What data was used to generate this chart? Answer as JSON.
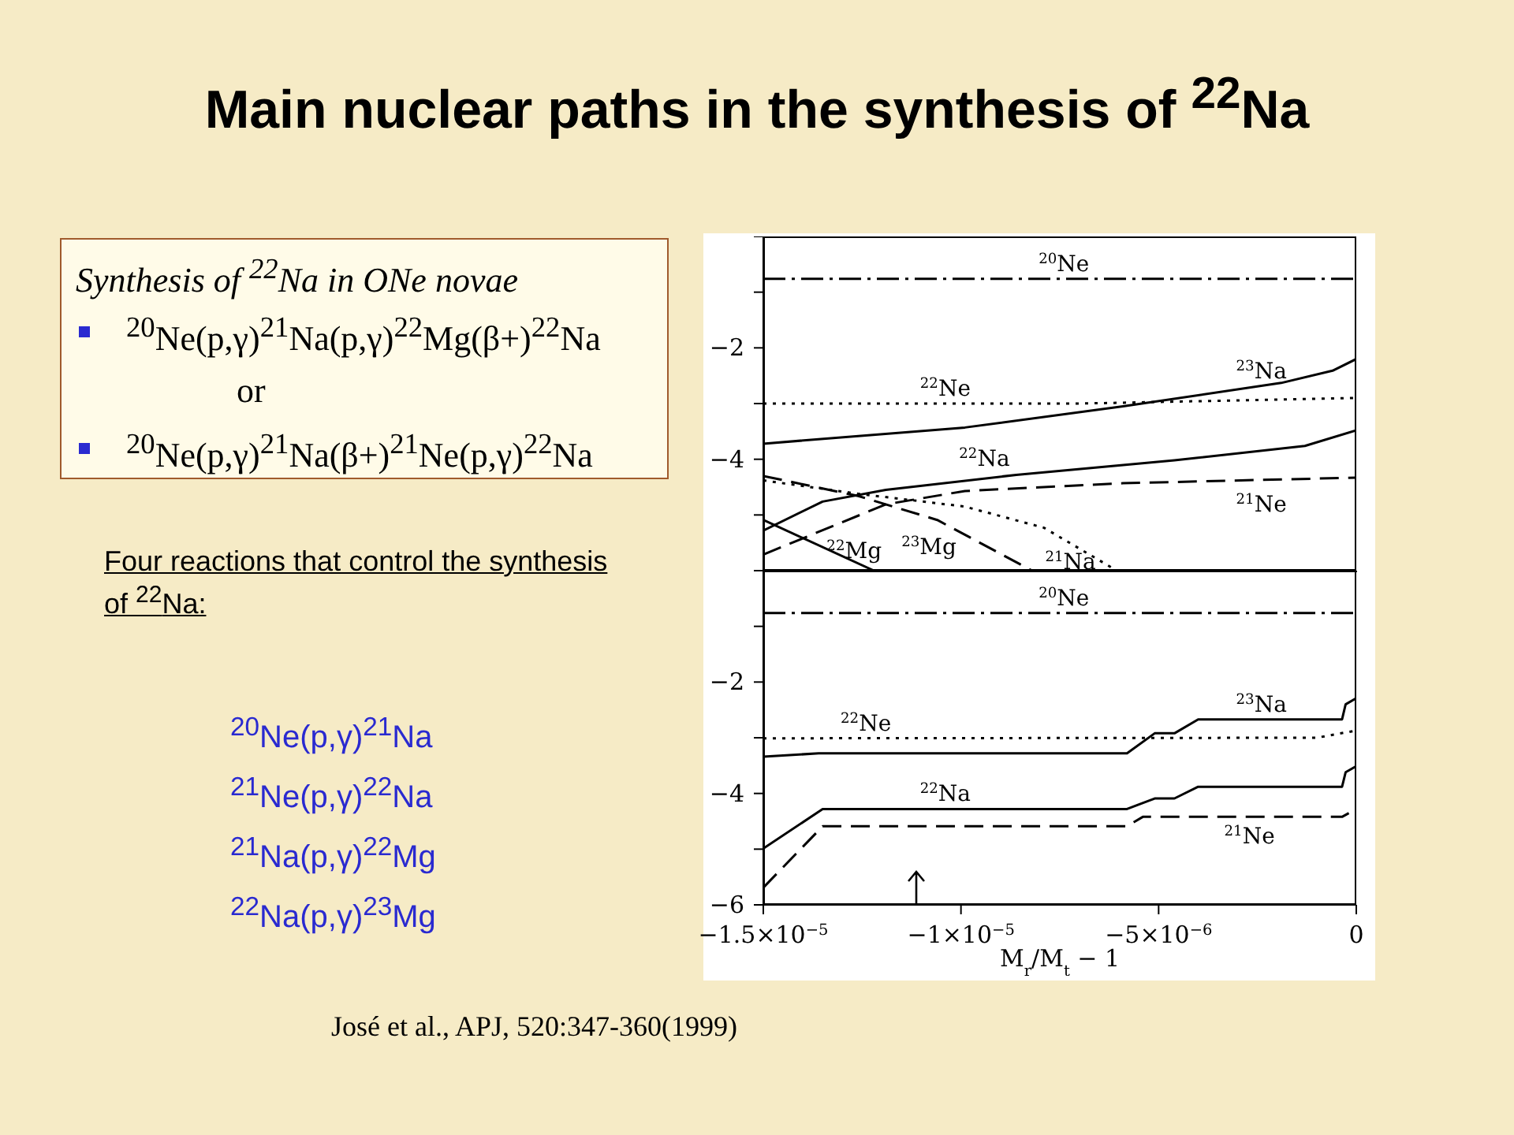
{
  "chart_data": [
    {
      "type": "other",
      "title": "Main nuclear paths in the synthesis of $^{22}$Na",
      "annotations": [
        "Synthesis of $^{22}$Na in ONe novae",
        "$^{20}$Ne(p,γ)$^{21}$Na(p,γ)$^{22}$Mg(β+)$^{22}$Na",
        "or",
        "$^{20}$Ne(p,γ)$^{21}$Na(β+)$^{21}$Ne(p,γ)$^{22}$Na",
        "Four reactions that control the synthesis of $^{22}$Na:",
        "$^{20}$Ne(p,γ)$^{21}$Na",
        "$^{21}$Ne(p,γ)$^{22}$Na",
        "$^{21}$Na(p,γ)$^{22}$Mg",
        "$^{22}$Na(p,γ)$^{23}$Mg",
        "José et al., APJ, 520:347-360(1999)"
      ]
    },
    {
      "type": "line",
      "xlim": [
        -1.5e-05,
        0
      ],
      "ylim": [
        -6,
        0
      ],
      "tick_labels": "y",
      "xticks": [
        {
          "value": -1.5e-05,
          "label": null
        },
        {
          "value": -1e-05,
          "label": null
        },
        {
          "value": -5e-06,
          "label": null
        },
        {
          "value": 0,
          "label": null
        }
      ],
      "yticks": [
        {
          "value": -6,
          "label": null
        },
        {
          "value": -5,
          "label": null
        },
        -4,
        {
          "value": -3,
          "label": null
        },
        -2,
        {
          "value": -1,
          "label": null
        },
        {
          "value": 0,
          "label": null
        }
      ],
      "series": [
        {
          "name": "$^{20}$Ne",
          "color": "#000000",
          "line_style": "dashdot",
          "x": [
            -1.5e-05,
            0
          ],
          "values": [
            -0.76,
            -0.76
          ]
        },
        {
          "name": "$^{22}$Ne",
          "color": "#000000",
          "line_style": "dotted",
          "x": [
            -1.5e-05,
            -7e-06,
            0
          ],
          "values": [
            -3.0,
            -3.0,
            -2.9
          ]
        },
        {
          "name": "$^{23}$Na",
          "color": "#000000",
          "line_style": "solid",
          "x": [
            -1.5e-05,
            -9.9e-06,
            -5.9e-06,
            -1.9e-06,
            -6e-07,
            0
          ],
          "values": [
            -3.72,
            -3.43,
            -3.05,
            -2.63,
            -2.41,
            -2.2
          ]
        },
        {
          "name": "$^{22}$Na",
          "color": "#000000",
          "line_style": "solid",
          "x": [
            -1.5e-05,
            -1.35e-05,
            -1.19e-05,
            -8.6e-06,
            -4.6e-06,
            -1.3e-06,
            0
          ],
          "values": [
            -5.28,
            -4.76,
            -4.55,
            -4.28,
            -4.02,
            -3.76,
            -3.48
          ]
        },
        {
          "name": "$^{21}$Ne",
          "color": "#000000",
          "line_style": "dashed",
          "x": [
            -1.5e-05,
            -1.19e-05,
            -9.9e-06,
            -5.9e-06,
            0
          ],
          "values": [
            -5.71,
            -4.81,
            -4.57,
            -4.43,
            -4.33
          ]
        },
        {
          "name": "$^{22}$Mg",
          "color": "#000000",
          "line_style": "solid",
          "x": [
            -1.5e-05,
            -1.22e-05
          ],
          "values": [
            -5.09,
            -6.0
          ]
        },
        {
          "name": "$^{23}$Mg",
          "color": "#000000",
          "line_style": "dashed",
          "x": [
            -1.5e-05,
            -1.26e-05,
            -1.06e-05,
            -8.2e-06
          ],
          "values": [
            -4.3,
            -4.66,
            -5.09,
            -6.0
          ]
        },
        {
          "name": "$^{21}$Na",
          "color": "#000000",
          "line_style": "dotted",
          "x": [
            -1.5e-05,
            -1.26e-05,
            -9.9e-06,
            -7.9e-06,
            -6.2e-06
          ],
          "values": [
            -4.38,
            -4.62,
            -4.85,
            -5.23,
            -5.94
          ]
        }
      ]
    },
    {
      "type": "line",
      "xlim": [
        -1.5e-05,
        0
      ],
      "ylim": [
        -6,
        0
      ],
      "xlabel": "M$_{r}$/M$_{t}$ − 1",
      "xticks": [
        {
          "value": -1.5e-05,
          "label": "−1.5×10$^{−5}$"
        },
        {
          "value": -1e-05,
          "label": "−1×10$^{−5}$"
        },
        {
          "value": -5e-06,
          "label": "−5×10$^{−6}$"
        },
        0
      ],
      "yticks": [
        -6,
        {
          "value": -5,
          "label": null
        },
        -4,
        {
          "value": -3,
          "label": null
        },
        -2,
        {
          "value": -1,
          "label": null
        },
        {
          "value": 0,
          "label": null
        }
      ],
      "series": [
        {
          "name": "$^{20}$Ne",
          "color": "#000000",
          "line_style": "dashdot",
          "x": [
            -1.5e-05,
            0
          ],
          "values": [
            -0.76,
            -0.76
          ]
        },
        {
          "name": "$^{22}$Ne",
          "color": "#000000",
          "line_style": "dotted",
          "x": [
            -1.5e-05,
            -1e-06,
            0
          ],
          "values": [
            -3.01,
            -3.0,
            -2.87
          ]
        },
        {
          "name": "$^{23}$Na",
          "color": "#000000",
          "line_style": "solid",
          "x": [
            -1.5e-05,
            -1.36e-05,
            -5.8e-06,
            -5.1e-06,
            -4.6e-06,
            -4e-06,
            -3.6e-07,
            -2.7e-07,
            0
          ],
          "values": [
            -3.34,
            -3.28,
            -3.28,
            -2.92,
            -2.92,
            -2.67,
            -2.67,
            -2.4,
            -2.29
          ]
        },
        {
          "name": "$^{22}$Na",
          "color": "#000000",
          "line_style": "solid",
          "x": [
            -1.5e-05,
            -1.35e-05,
            -5.8e-06,
            -5.1e-06,
            -4.6e-06,
            -4e-06,
            -3.6e-07,
            -2.7e-07,
            0
          ],
          "values": [
            -4.99,
            -4.28,
            -4.28,
            -4.09,
            -4.09,
            -3.88,
            -3.88,
            -3.62,
            -3.51
          ]
        },
        {
          "name": "$^{21}$Ne",
          "color": "#000000",
          "line_style": "dashed",
          "x": [
            -1.5e-05,
            -1.35e-05,
            -5.8e-06,
            -5.4e-06,
            -3.6e-07,
            0
          ],
          "values": [
            -5.69,
            -4.59,
            -4.59,
            -4.42,
            -4.42,
            -4.28
          ]
        }
      ]
    }
  ]
}
